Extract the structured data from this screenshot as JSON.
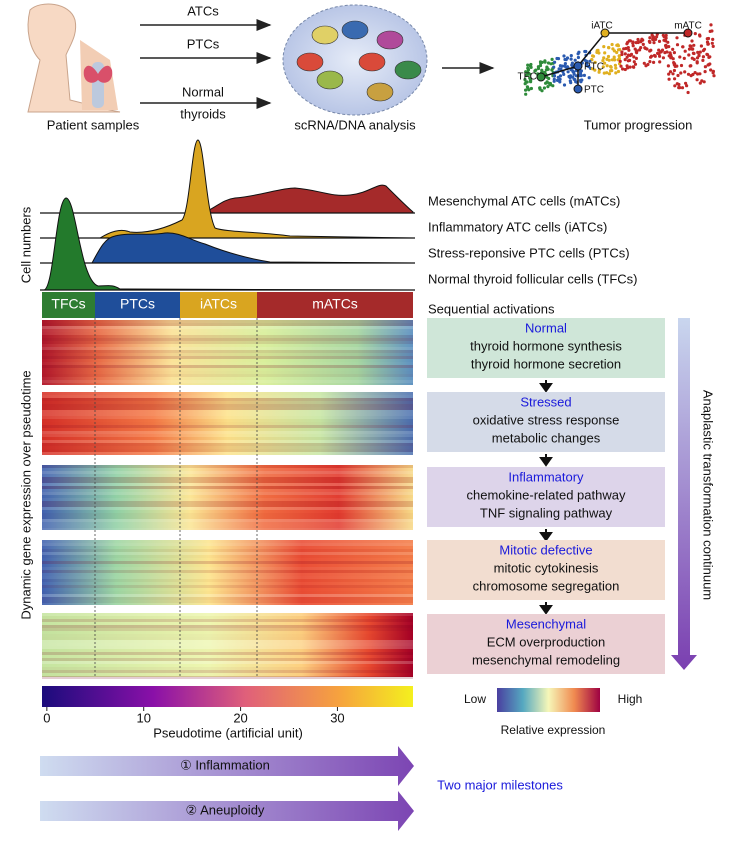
{
  "header": {
    "arrows": [
      "ATCs",
      "PTCs"
    ],
    "normal_label": [
      "Normal",
      "thyroids"
    ],
    "stages": [
      "Patient samples",
      "scRNA/DNA analysis",
      "Tumor progression"
    ],
    "umap_nodes": [
      "TFC",
      "PTC",
      "PTC",
      "iATC",
      "mATC"
    ]
  },
  "density": {
    "axis_label": "Cell numbers",
    "legend": [
      "Mesenchymal ATC cells (mATCs)",
      "Inflammatory ATC cells (iATCs)",
      "Stress-reponsive PTC cells (PTCs)",
      "Normal thyroid follicular cells (TFCs)"
    ]
  },
  "heatmap": {
    "axis_label": "Dynamic gene expression over pseudotime",
    "groups": [
      "TFCs",
      "PTCs",
      "iATCs",
      "mATCs"
    ]
  },
  "pseudotime": {
    "label": "Pseudotime (artificial unit)",
    "xlim": [
      -0.5,
      37.8
    ],
    "ticks": [
      0,
      10,
      20,
      30
    ]
  },
  "activations": {
    "title": "Sequential activations",
    "steps": [
      {
        "name": "Normal",
        "items": [
          "thyroid hormone synthesis",
          "thyroid hormone secretion"
        ]
      },
      {
        "name": "Stressed",
        "items": [
          "oxidative stress response",
          "metabolic changes"
        ]
      },
      {
        "name": "Inflammatory",
        "items": [
          "chemokine-related pathway",
          "TNF signaling pathway"
        ]
      },
      {
        "name": "Mitotic defective",
        "items": [
          "mitotic cytokinesis",
          "chromosome segregation"
        ]
      },
      {
        "name": "Mesenchymal",
        "items": [
          "ECM overproduction",
          "mesenchymal remodeling"
        ]
      }
    ]
  },
  "continuum": "Anaplastic transformation continuum",
  "expression_scale": {
    "low": "Low",
    "high": "High",
    "label": "Relative expression"
  },
  "milestones": {
    "title": "Two major milestones",
    "items": [
      "① Inflammation",
      "② Aneuploidy"
    ]
  }
}
